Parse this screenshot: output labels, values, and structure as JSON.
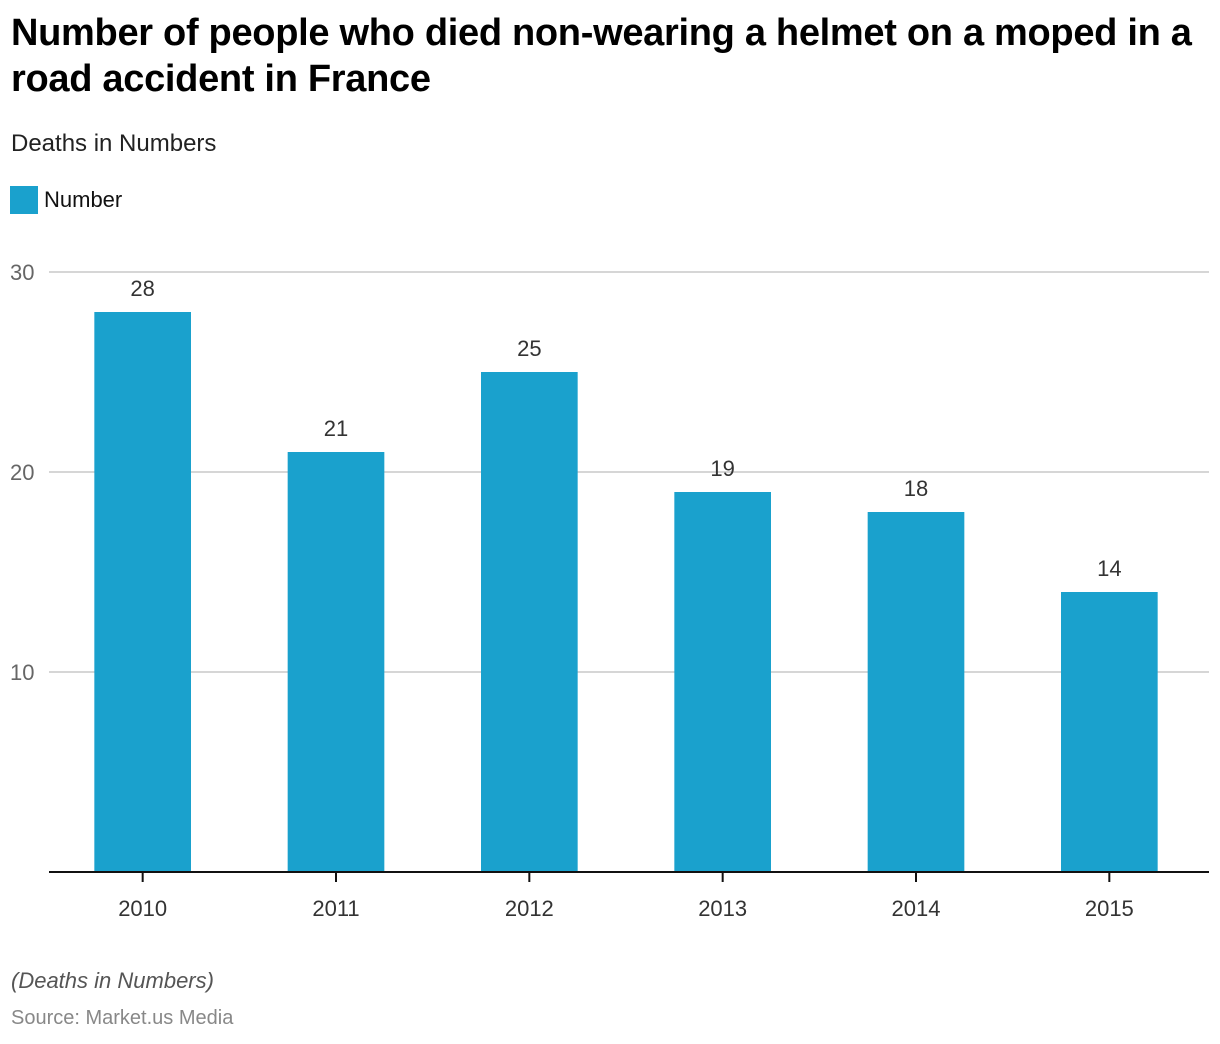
{
  "header": {
    "title": "Number of people who died non-wearing a helmet on a moped in a road accident in France",
    "subtitle": "Deaths in Numbers"
  },
  "legend": {
    "label": "Number",
    "color": "#1aa1cd"
  },
  "footer": {
    "note": "(Deaths in Numbers)",
    "source": "Source: Market.us Media"
  },
  "chart_data": {
    "type": "bar",
    "title": "Number of people who died non-wearing a helmet on a moped in a road accident in France",
    "subtitle": "Deaths in Numbers",
    "xlabel": "",
    "ylabel": "",
    "categories": [
      "2010",
      "2011",
      "2012",
      "2013",
      "2014",
      "2015"
    ],
    "series": [
      {
        "name": "Number",
        "values": [
          28,
          21,
          25,
          19,
          18,
          14
        ],
        "color": "#1aa1cd"
      }
    ],
    "ylim": [
      0,
      30
    ],
    "yticks": [
      10,
      20,
      30
    ],
    "grid": true,
    "legend_position": "top-left",
    "data_labels": true
  }
}
